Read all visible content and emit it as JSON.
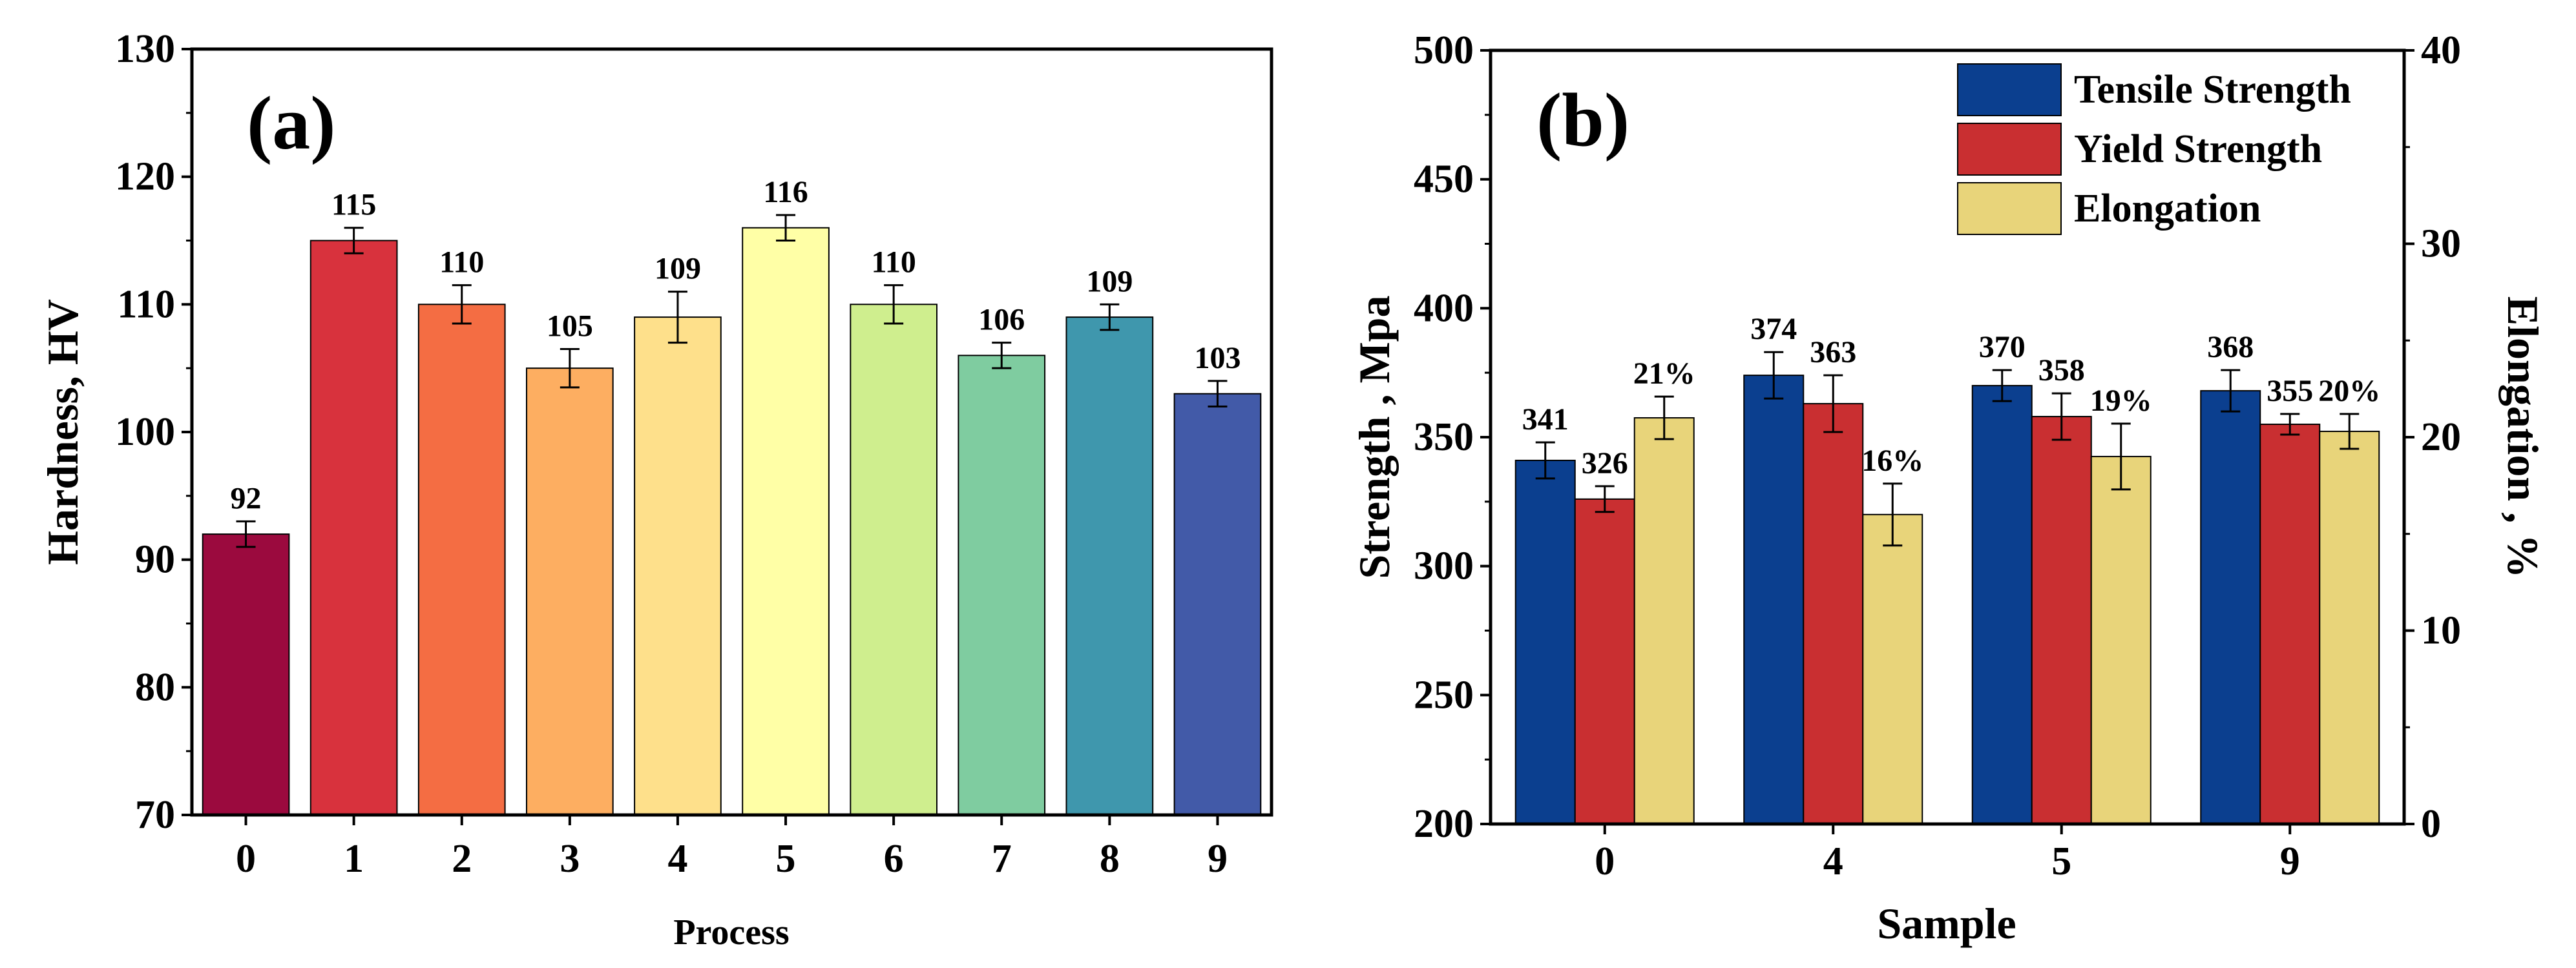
{
  "chart_data": [
    {
      "panel": "(a)",
      "type": "bar",
      "xlabel": "Process",
      "ylabel": "Hardness, HV",
      "ylim": [
        70,
        130
      ],
      "yticks": [
        70,
        80,
        90,
        100,
        110,
        120,
        130
      ],
      "categories": [
        "0",
        "1",
        "2",
        "3",
        "4",
        "5",
        "6",
        "7",
        "8",
        "9"
      ],
      "values": [
        92,
        115,
        110,
        105,
        109,
        116,
        110,
        106,
        109,
        103
      ],
      "errors": [
        1,
        1,
        1.5,
        1.5,
        2,
        1,
        1.5,
        1,
        1,
        1
      ],
      "labels": [
        "92",
        "115",
        "110",
        "105",
        "109",
        "116",
        "110",
        "106",
        "109",
        "103"
      ],
      "colors": [
        "#9b0a3e",
        "#d8323d",
        "#f46d43",
        "#fdae61",
        "#fee08b",
        "#ffffa6",
        "#cfee8e",
        "#7fcca0",
        "#3f97ad",
        "#425aa8"
      ]
    },
    {
      "panel": "(b)",
      "type": "bar",
      "xlabel": "Sample",
      "ylabel": "Strength , Mpa",
      "y2label": "Elongation , %",
      "ylim": [
        200,
        500
      ],
      "yticks": [
        200,
        250,
        300,
        350,
        400,
        450,
        500
      ],
      "y2lim": [
        0,
        40
      ],
      "y2ticks": [
        0,
        10,
        20,
        30,
        40
      ],
      "categories": [
        "0",
        "4",
        "5",
        "9"
      ],
      "legend": [
        "Tensile Strength",
        "Yield Strength",
        "Elongation"
      ],
      "series": [
        {
          "name": "Tensile Strength",
          "axis": "left",
          "color": "#0b3f8f",
          "values": [
            341,
            374,
            370,
            368
          ],
          "errors": [
            7,
            9,
            6,
            8
          ],
          "labels": [
            "341",
            "374",
            "370",
            "368"
          ]
        },
        {
          "name": "Yield Strength",
          "axis": "left",
          "color": "#c92f31",
          "values": [
            326,
            363,
            358,
            355
          ],
          "errors": [
            5,
            11,
            9,
            4
          ],
          "labels": [
            "326",
            "363",
            "358",
            "355"
          ]
        },
        {
          "name": "Elongation",
          "axis": "right",
          "color": "#e8d47a",
          "values": [
            21,
            16,
            19,
            20.3
          ],
          "errors": [
            1.1,
            1.6,
            1.7,
            0.9
          ],
          "labels": [
            "21%",
            "16%",
            "19%",
            "20%"
          ]
        }
      ]
    }
  ]
}
